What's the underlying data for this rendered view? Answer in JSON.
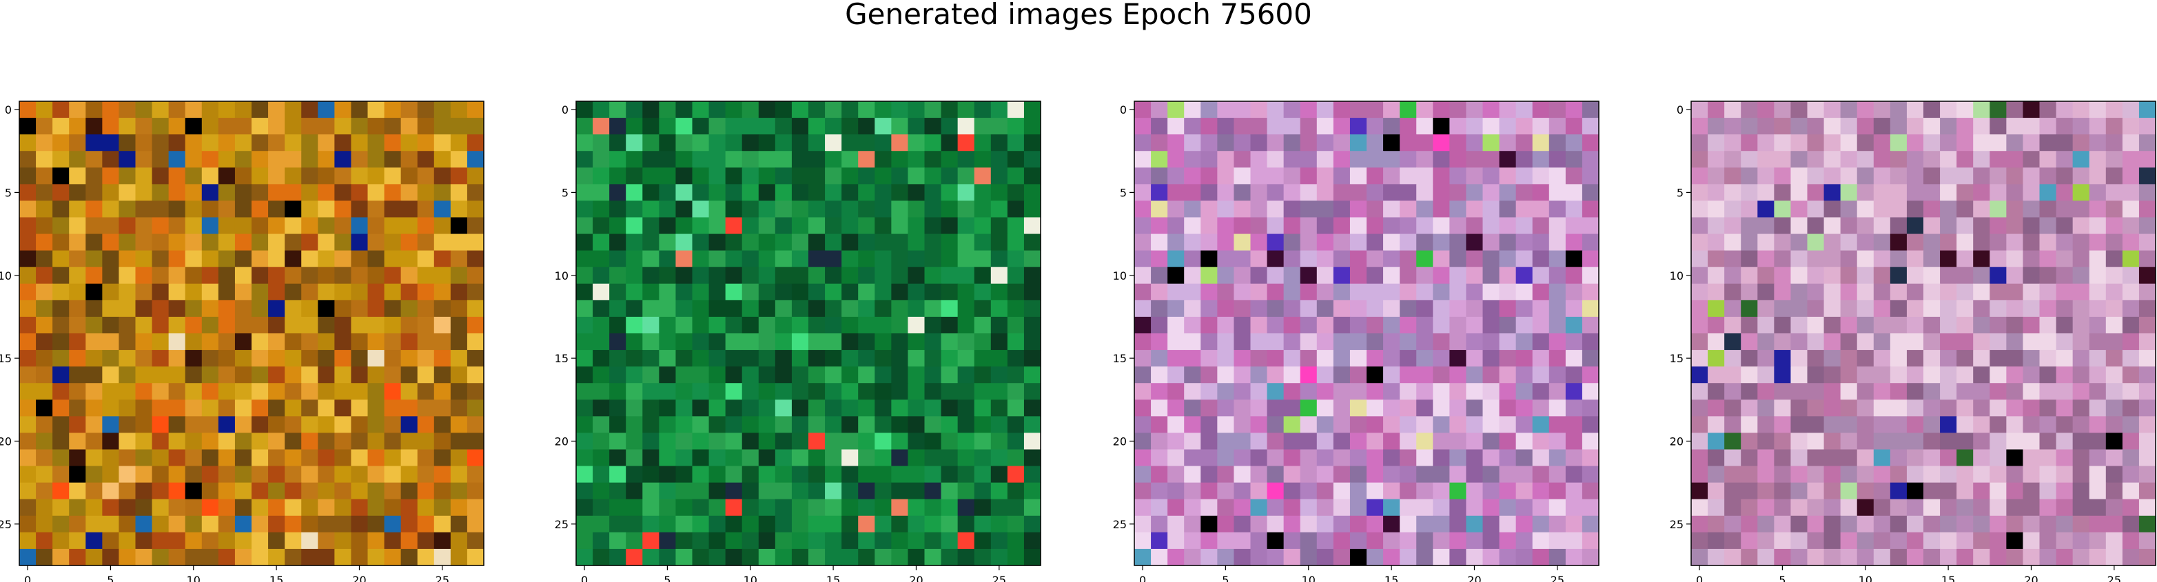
{
  "figure": {
    "title": "Generated images Epoch 75600"
  },
  "chart_data": [
    {
      "type": "heatmap",
      "title": "",
      "xlabel": "",
      "ylabel": "",
      "grid_size": 28,
      "xlim": [
        -0.5,
        27.5
      ],
      "ylim": [
        27.5,
        -0.5
      ],
      "xticks": [
        0,
        5,
        10,
        15,
        20,
        25
      ],
      "yticks": [
        0,
        5,
        10,
        15,
        20,
        25
      ],
      "grid": false,
      "palette": [
        "#b8860b",
        "#c8960c",
        "#d98c10",
        "#a0620c",
        "#e07010",
        "#b87014",
        "#8c5a12",
        "#d4a418",
        "#c07818",
        "#9a7a10",
        "#e8a030",
        "#7a3a10",
        "#b04a10",
        "#6e4a10",
        "#f0c040"
      ],
      "accents": [
        "#0a1a8c",
        "#1a6ab0",
        "#f0e0c0",
        "#3a1408",
        "#000000",
        "#ff5010",
        "#f8c070"
      ],
      "seed": 11
    },
    {
      "type": "heatmap",
      "title": "",
      "xlabel": "",
      "ylabel": "",
      "grid_size": 28,
      "xlim": [
        -0.5,
        27.5
      ],
      "ylim": [
        27.5,
        -0.5
      ],
      "xticks": [
        0,
        5,
        10,
        15,
        20,
        25
      ],
      "yticks": [
        0,
        5,
        10,
        15,
        20,
        25
      ],
      "grid": false,
      "palette": [
        "#0a7a30",
        "#108a3c",
        "#0a5a28",
        "#18a048",
        "#0c6a34",
        "#064a22",
        "#1a9040",
        "#0e8040",
        "#2aa050",
        "#0a6a3a",
        "#08502a",
        "#30b058",
        "#0a3a20",
        "#14904a"
      ],
      "accents": [
        "#ff4030",
        "#f08060",
        "#f0f0e0",
        "#40e080",
        "#1a2a40",
        "#60e0a0"
      ],
      "seed": 23
    },
    {
      "type": "heatmap",
      "title": "",
      "xlabel": "",
      "ylabel": "",
      "grid_size": 28,
      "xlim": [
        -0.5,
        27.5
      ],
      "ylim": [
        27.5,
        -0.5
      ],
      "xticks": [
        0,
        5,
        10,
        15,
        20,
        25
      ],
      "yticks": [
        0,
        5,
        10,
        15,
        20,
        25
      ],
      "grid": false,
      "palette": [
        "#c890c8",
        "#d8a0d8",
        "#a878b8",
        "#e8c8e8",
        "#9060a0",
        "#d070c0",
        "#b080c0",
        "#f0d8f0",
        "#c060a8",
        "#a090c0",
        "#e0a0d0",
        "#8a70a0",
        "#d0b0e0",
        "#b86aa8"
      ],
      "accents": [
        "#000000",
        "#3a0a30",
        "#a8e068",
        "#50a0c0",
        "#e8e0a0",
        "#5030c0",
        "#30c040",
        "#ff40c0"
      ],
      "seed": 37
    },
    {
      "type": "heatmap",
      "title": "",
      "xlabel": "",
      "ylabel": "",
      "grid_size": 28,
      "xlim": [
        -0.5,
        27.5
      ],
      "ylim": [
        27.5,
        -0.5
      ],
      "xticks": [
        0,
        5,
        10,
        15,
        20,
        25
      ],
      "yticks": [
        0,
        5,
        10,
        15,
        20,
        25
      ],
      "grid": false,
      "palette": [
        "#c898c0",
        "#d8a8d0",
        "#b07aa8",
        "#e8c8e0",
        "#9a6890",
        "#d488c0",
        "#b888b8",
        "#f0d8e8",
        "#c070a8",
        "#a888b0",
        "#e0b0d0",
        "#8a6088",
        "#d8b8d8",
        "#b87aa0"
      ],
      "accents": [
        "#000000",
        "#3a0a20",
        "#20304a",
        "#4aa0c0",
        "#b0e0a0",
        "#2a6a2a",
        "#2020a0",
        "#a0d040"
      ],
      "seed": 53
    }
  ]
}
